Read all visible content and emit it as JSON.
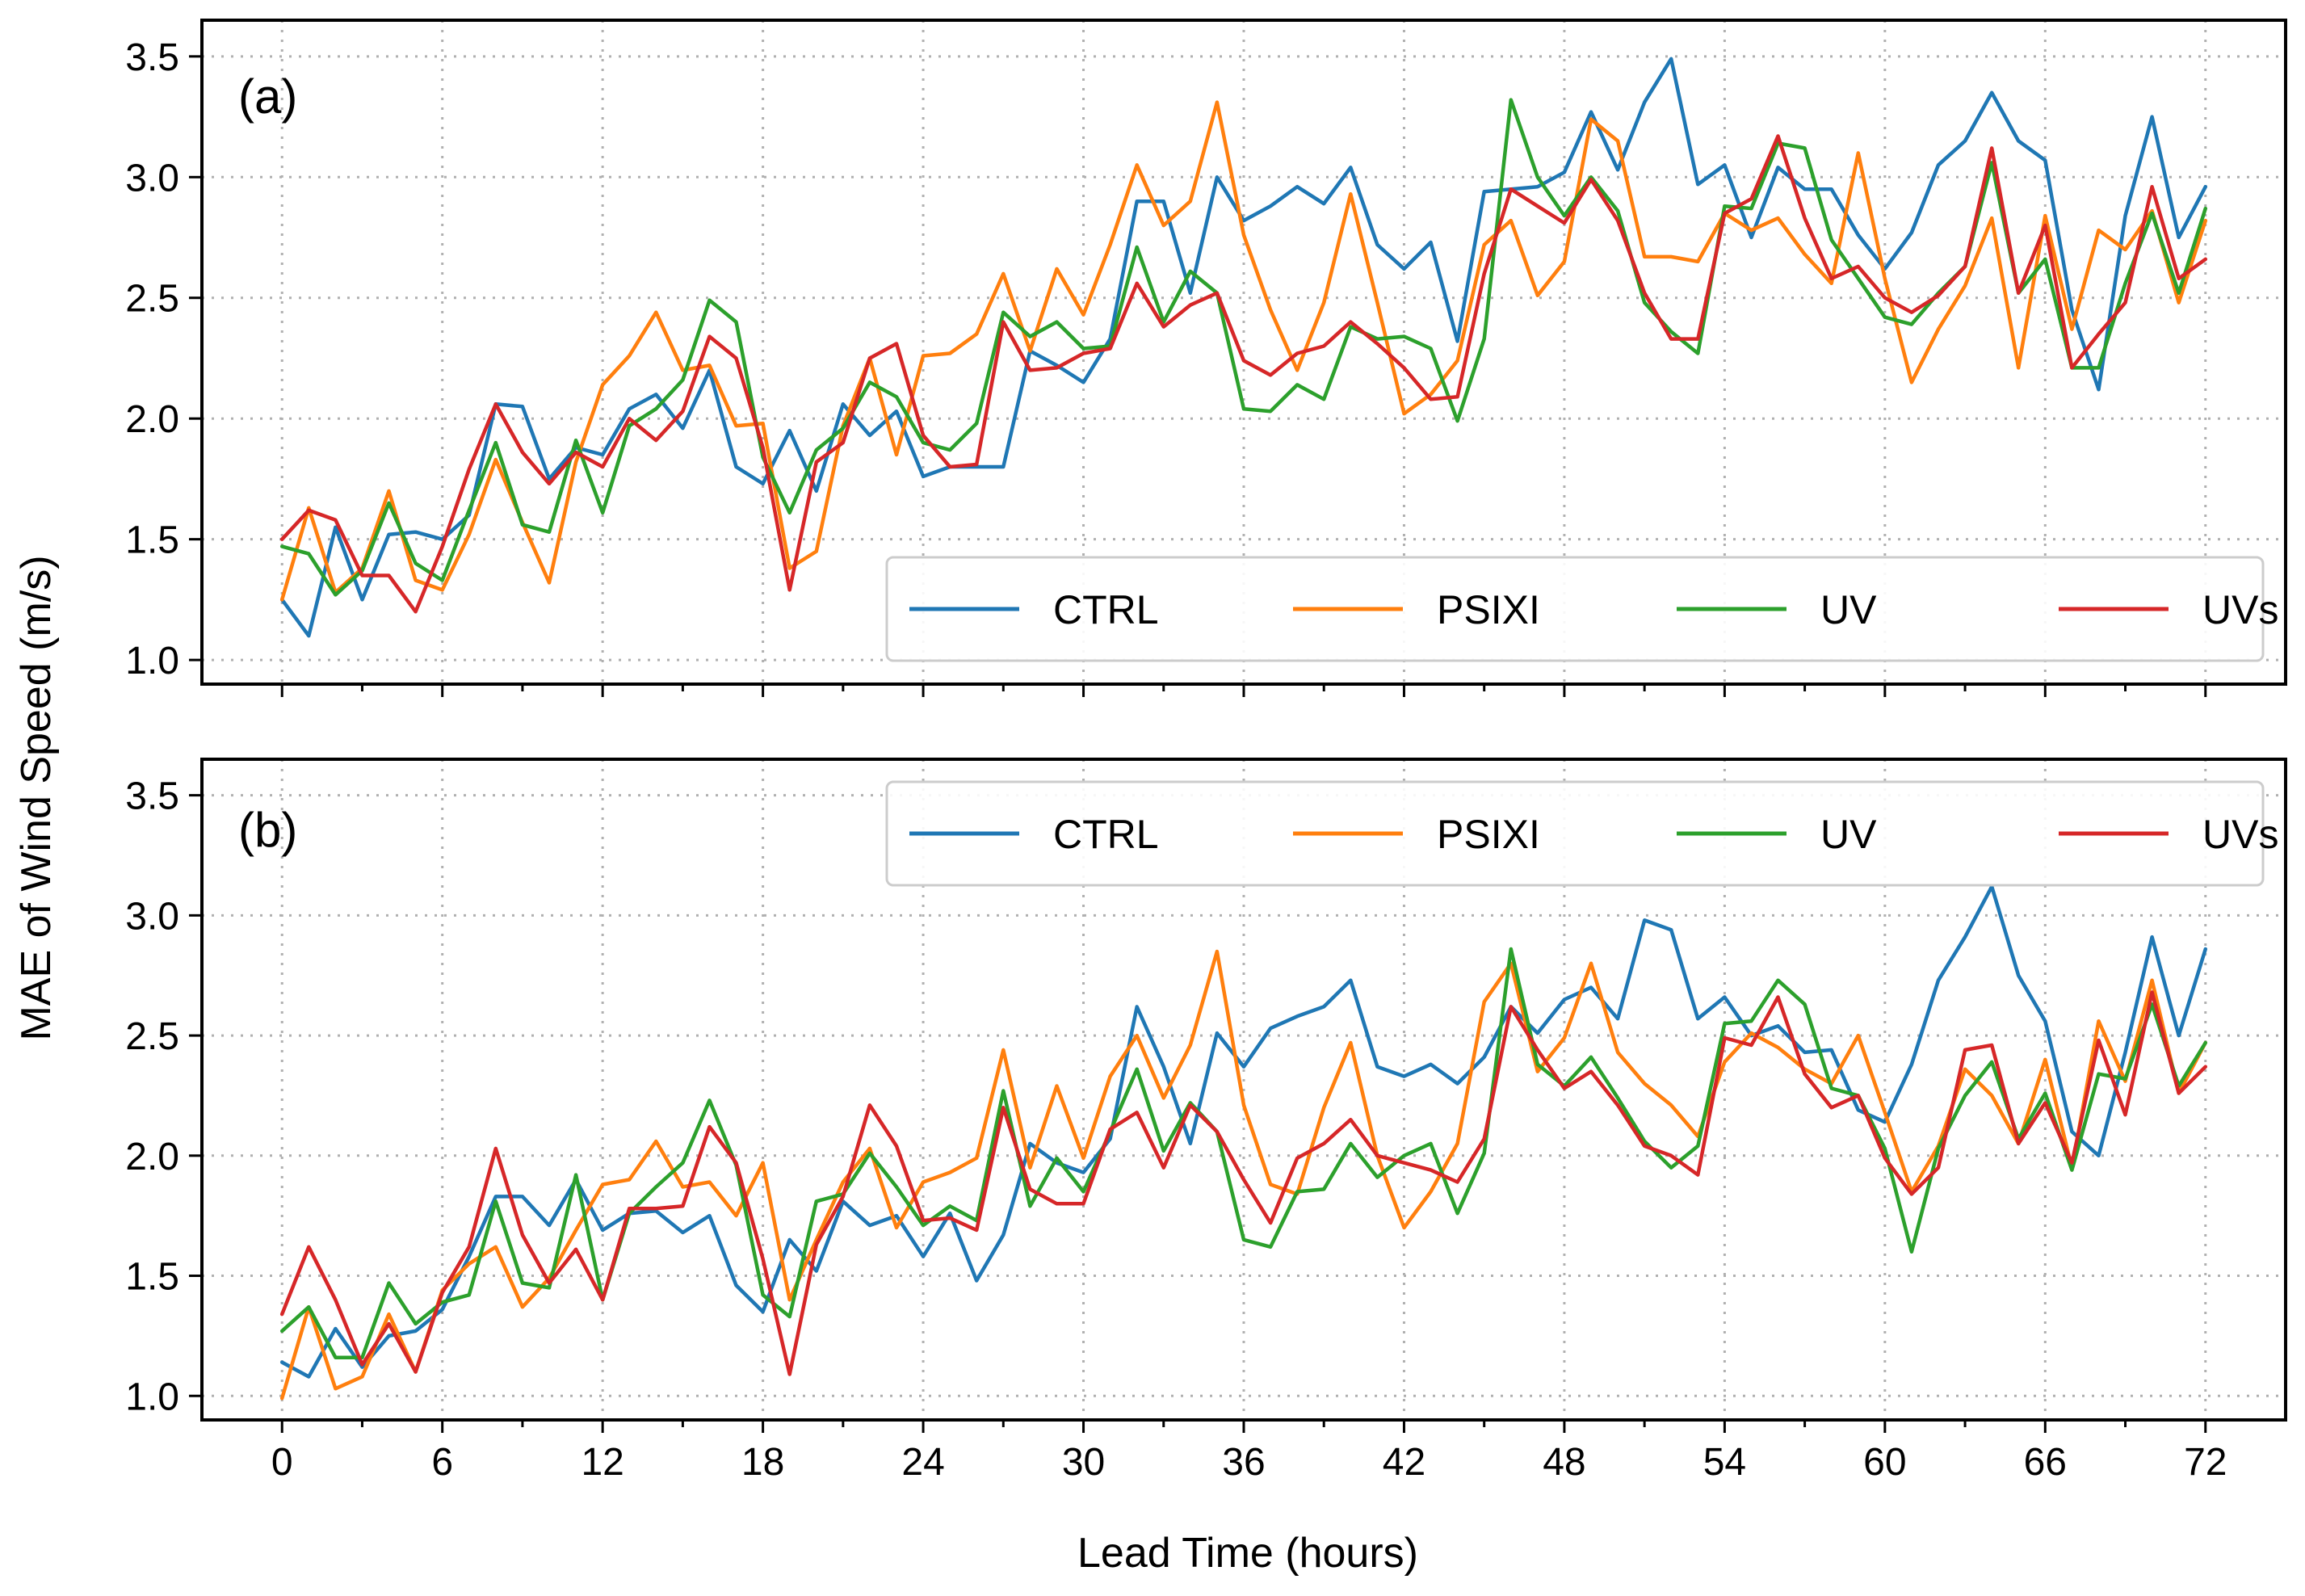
{
  "chart_data": [
    {
      "type": "line",
      "panel_label": "(a)",
      "xlabel": "",
      "ylabel": "MAE of Wind Speed (m/s)",
      "xlim": [
        -3,
        75
      ],
      "ylim": [
        0.9,
        3.65
      ],
      "x_ticks": [
        0,
        6,
        12,
        18,
        24,
        30,
        36,
        42,
        48,
        54,
        60,
        66,
        72
      ],
      "x_tick_labels": [],
      "y_ticks": [
        1.0,
        1.5,
        2.0,
        2.5,
        3.0,
        3.5
      ],
      "y_tick_labels": [
        "1.0",
        "1.5",
        "2.0",
        "2.5",
        "3.0",
        "3.5"
      ],
      "grid": true,
      "legend_position": "lower-right",
      "x": [
        0,
        1,
        2,
        3,
        4,
        5,
        6,
        7,
        8,
        9,
        10,
        11,
        12,
        13,
        14,
        15,
        16,
        17,
        18,
        19,
        20,
        21,
        22,
        23,
        24,
        25,
        26,
        27,
        28,
        29,
        30,
        31,
        32,
        33,
        34,
        35,
        36,
        37,
        38,
        39,
        40,
        41,
        42,
        43,
        44,
        45,
        46,
        47,
        48,
        49,
        50,
        51,
        52,
        53,
        54,
        55,
        56,
        57,
        58,
        59,
        60,
        61,
        62,
        63,
        64,
        65,
        66,
        67,
        68,
        69,
        70,
        71,
        72
      ],
      "series": [
        {
          "name": "CTRL",
          "color": "#1f77b4",
          "values": [
            1.25,
            1.1,
            1.55,
            1.25,
            1.52,
            1.53,
            1.5,
            1.6,
            2.06,
            2.05,
            1.75,
            1.88,
            1.85,
            2.04,
            2.1,
            1.96,
            2.2,
            1.8,
            1.73,
            1.95,
            1.7,
            2.06,
            1.93,
            2.03,
            1.76,
            1.8,
            1.8,
            1.8,
            2.28,
            2.22,
            2.15,
            2.33,
            2.9,
            2.9,
            2.52,
            3.0,
            2.82,
            2.88,
            2.96,
            2.89,
            3.04,
            2.72,
            2.62,
            2.73,
            2.32,
            2.94,
            2.95,
            2.96,
            3.02,
            3.27,
            3.03,
            3.31,
            3.49,
            2.97,
            3.05,
            2.75,
            3.04,
            2.95,
            2.95,
            2.76,
            2.62,
            2.77,
            3.05,
            3.15,
            3.35,
            3.15,
            3.07,
            2.45,
            2.12,
            2.84,
            3.25,
            2.75,
            2.96
          ]
        },
        {
          "name": "PSIXI",
          "color": "#ff7f0e",
          "values": [
            1.25,
            1.63,
            1.28,
            1.38,
            1.7,
            1.33,
            1.29,
            1.52,
            1.83,
            1.57,
            1.32,
            1.82,
            2.14,
            2.26,
            2.44,
            2.2,
            2.22,
            1.97,
            1.98,
            1.38,
            1.45,
            1.97,
            2.25,
            1.85,
            2.26,
            2.27,
            2.35,
            2.6,
            2.28,
            2.62,
            2.43,
            2.72,
            3.05,
            2.8,
            2.9,
            3.31,
            2.76,
            2.45,
            2.2,
            2.48,
            2.93,
            2.48,
            2.02,
            2.1,
            2.24,
            2.72,
            2.82,
            2.51,
            2.65,
            3.24,
            3.15,
            2.67,
            2.67,
            2.65,
            2.85,
            2.78,
            2.83,
            2.68,
            2.56,
            3.1,
            2.58,
            2.15,
            2.37,
            2.55,
            2.83,
            2.21,
            2.84,
            2.37,
            2.78,
            2.7,
            2.86,
            2.48,
            2.82
          ]
        },
        {
          "name": "UV",
          "color": "#2ca02c",
          "values": [
            1.47,
            1.44,
            1.27,
            1.37,
            1.65,
            1.4,
            1.33,
            1.62,
            1.9,
            1.56,
            1.53,
            1.91,
            1.61,
            1.97,
            2.04,
            2.16,
            2.49,
            2.4,
            1.84,
            1.61,
            1.87,
            1.96,
            2.15,
            2.09,
            1.9,
            1.87,
            1.98,
            2.44,
            2.34,
            2.4,
            2.29,
            2.3,
            2.71,
            2.4,
            2.61,
            2.52,
            2.04,
            2.03,
            2.14,
            2.08,
            2.38,
            2.33,
            2.34,
            2.29,
            1.99,
            2.33,
            3.32,
            3.0,
            2.84,
            3.0,
            2.86,
            2.48,
            2.36,
            2.27,
            2.88,
            2.87,
            3.14,
            3.12,
            2.74,
            2.58,
            2.42,
            2.39,
            2.52,
            2.63,
            3.06,
            2.52,
            2.66,
            2.21,
            2.21,
            2.56,
            2.85,
            2.52,
            2.87
          ]
        },
        {
          "name": "UVs",
          "color": "#d62728",
          "values": [
            1.5,
            1.62,
            1.58,
            1.35,
            1.35,
            1.2,
            1.47,
            1.79,
            2.06,
            1.86,
            1.73,
            1.86,
            1.8,
            2.0,
            1.91,
            2.03,
            2.34,
            2.25,
            1.88,
            1.29,
            1.82,
            1.9,
            2.25,
            2.31,
            1.93,
            1.8,
            1.81,
            2.4,
            2.2,
            2.21,
            2.27,
            2.29,
            2.56,
            2.38,
            2.47,
            2.52,
            2.24,
            2.18,
            2.27,
            2.3,
            2.4,
            2.31,
            2.21,
            2.08,
            2.09,
            2.6,
            2.95,
            2.88,
            2.81,
            2.99,
            2.82,
            2.52,
            2.33,
            2.33,
            2.85,
            2.91,
            3.17,
            2.83,
            2.58,
            2.63,
            2.5,
            2.44,
            2.51,
            2.63,
            3.12,
            2.52,
            2.8,
            2.21,
            2.35,
            2.48,
            2.96,
            2.58,
            2.66
          ]
        }
      ]
    },
    {
      "type": "line",
      "panel_label": "(b)",
      "xlabel": "Lead Time (hours)",
      "ylabel": "MAE of Wind Speed (m/s)",
      "xlim": [
        -3,
        75
      ],
      "ylim": [
        0.9,
        3.65
      ],
      "x_ticks": [
        0,
        6,
        12,
        18,
        24,
        30,
        36,
        42,
        48,
        54,
        60,
        66,
        72
      ],
      "x_tick_labels": [
        "0",
        "6",
        "12",
        "18",
        "24",
        "30",
        "36",
        "42",
        "48",
        "54",
        "60",
        "66",
        "72"
      ],
      "y_ticks": [
        1.0,
        1.5,
        2.0,
        2.5,
        3.0,
        3.5
      ],
      "y_tick_labels": [
        "1.0",
        "1.5",
        "2.0",
        "2.5",
        "3.0",
        "3.5"
      ],
      "grid": true,
      "legend_position": "upper-right",
      "x": [
        0,
        1,
        2,
        3,
        4,
        5,
        6,
        7,
        8,
        9,
        10,
        11,
        12,
        13,
        14,
        15,
        16,
        17,
        18,
        19,
        20,
        21,
        22,
        23,
        24,
        25,
        26,
        27,
        28,
        29,
        30,
        31,
        32,
        33,
        34,
        35,
        36,
        37,
        38,
        39,
        40,
        41,
        42,
        43,
        44,
        45,
        46,
        47,
        48,
        49,
        50,
        51,
        52,
        53,
        54,
        55,
        56,
        57,
        58,
        59,
        60,
        61,
        62,
        63,
        64,
        65,
        66,
        67,
        68,
        69,
        70,
        71,
        72
      ],
      "series": [
        {
          "name": "CTRL",
          "color": "#1f77b4",
          "values": [
            1.14,
            1.08,
            1.28,
            1.12,
            1.25,
            1.27,
            1.36,
            1.58,
            1.83,
            1.83,
            1.71,
            1.9,
            1.69,
            1.76,
            1.77,
            1.68,
            1.75,
            1.46,
            1.35,
            1.65,
            1.52,
            1.81,
            1.71,
            1.75,
            1.58,
            1.76,
            1.48,
            1.67,
            2.05,
            1.97,
            1.93,
            2.07,
            2.62,
            2.37,
            2.05,
            2.51,
            2.37,
            2.53,
            2.58,
            2.62,
            2.73,
            2.37,
            2.33,
            2.38,
            2.3,
            2.41,
            2.62,
            2.51,
            2.65,
            2.7,
            2.57,
            2.98,
            2.94,
            2.57,
            2.66,
            2.5,
            2.54,
            2.43,
            2.44,
            2.19,
            2.14,
            2.38,
            2.73,
            2.91,
            3.12,
            2.75,
            2.56,
            2.1,
            2.0,
            2.43,
            2.91,
            2.5,
            2.86
          ]
        },
        {
          "name": "PSIXI",
          "color": "#ff7f0e",
          "values": [
            0.99,
            1.37,
            1.03,
            1.08,
            1.34,
            1.1,
            1.44,
            1.55,
            1.62,
            1.37,
            1.49,
            1.69,
            1.88,
            1.9,
            2.06,
            1.87,
            1.89,
            1.75,
            1.97,
            1.4,
            1.65,
            1.89,
            2.03,
            1.7,
            1.89,
            1.93,
            1.99,
            2.44,
            1.95,
            2.29,
            1.99,
            2.33,
            2.5,
            2.24,
            2.46,
            2.85,
            2.21,
            1.88,
            1.84,
            2.2,
            2.47,
            2.0,
            1.7,
            1.85,
            2.05,
            2.64,
            2.8,
            2.35,
            2.49,
            2.8,
            2.43,
            2.3,
            2.21,
            2.08,
            2.39,
            2.51,
            2.45,
            2.36,
            2.3,
            2.5,
            2.18,
            1.85,
            2.04,
            2.36,
            2.25,
            2.05,
            2.4,
            1.95,
            2.56,
            2.31,
            2.73,
            2.26,
            2.47
          ]
        },
        {
          "name": "UV",
          "color": "#2ca02c",
          "values": [
            1.27,
            1.37,
            1.16,
            1.16,
            1.47,
            1.3,
            1.39,
            1.42,
            1.81,
            1.47,
            1.45,
            1.92,
            1.4,
            1.76,
            1.87,
            1.97,
            2.23,
            1.96,
            1.42,
            1.33,
            1.81,
            1.84,
            2.01,
            1.87,
            1.71,
            1.79,
            1.73,
            2.27,
            1.79,
            1.99,
            1.85,
            2.1,
            2.36,
            2.02,
            2.22,
            2.1,
            1.65,
            1.62,
            1.85,
            1.86,
            2.05,
            1.91,
            2.0,
            2.05,
            1.76,
            2.01,
            2.86,
            2.38,
            2.29,
            2.41,
            2.24,
            2.06,
            1.95,
            2.04,
            2.55,
            2.56,
            2.73,
            2.63,
            2.28,
            2.25,
            2.03,
            1.6,
            2.03,
            2.25,
            2.39,
            2.07,
            2.26,
            1.94,
            2.34,
            2.32,
            2.63,
            2.29,
            2.47
          ]
        },
        {
          "name": "UVs",
          "color": "#d62728",
          "values": [
            1.34,
            1.62,
            1.4,
            1.13,
            1.3,
            1.1,
            1.43,
            1.62,
            2.03,
            1.67,
            1.47,
            1.61,
            1.4,
            1.78,
            1.78,
            1.79,
            2.12,
            1.97,
            1.57,
            1.09,
            1.63,
            1.83,
            2.21,
            2.04,
            1.73,
            1.74,
            1.69,
            2.2,
            1.86,
            1.8,
            1.8,
            2.11,
            2.18,
            1.95,
            2.21,
            2.1,
            1.9,
            1.72,
            1.99,
            2.05,
            2.15,
            2.0,
            1.97,
            1.94,
            1.89,
            2.07,
            2.62,
            2.44,
            2.28,
            2.35,
            2.21,
            2.04,
            2.0,
            1.92,
            2.49,
            2.46,
            2.66,
            2.34,
            2.2,
            2.25,
            1.99,
            1.84,
            1.95,
            2.44,
            2.46,
            2.05,
            2.22,
            1.97,
            2.48,
            2.17,
            2.68,
            2.26,
            2.37
          ]
        }
      ]
    }
  ]
}
